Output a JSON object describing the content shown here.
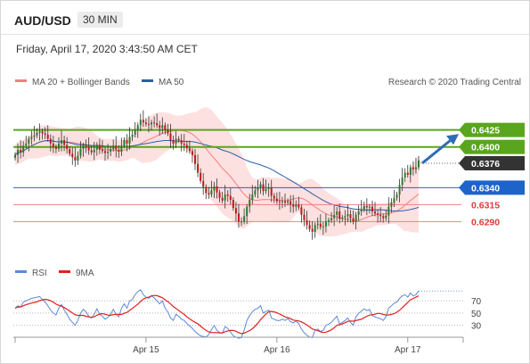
{
  "header": {
    "symbol": "AUD/USD",
    "timeframe": "30 MIN",
    "datetime": "Friday, April 17, 2020 3:43:50 AM CET"
  },
  "legend": {
    "ma20_label": "MA 20 + Bollinger Bands",
    "ma50_label": "MA 50",
    "credit": "Research © 2020 Trading Central",
    "rsi_label": "RSI",
    "ma9_label": "9MA"
  },
  "colors": {
    "ma20": "#f08080",
    "ma50": "#2b5ea8",
    "band_fill": "#fde0e0",
    "resistance": "#5aa51e",
    "support_blue": "#1e64c8",
    "support_red": "#e03c3c",
    "current": "#333333",
    "rsi": "#5b8ad6",
    "rsi_ma": "#e02020",
    "up_candle": "#2a7a2a",
    "down_candle": "#c01818"
  },
  "chart_data": [
    {
      "type": "candlestick",
      "x_tick_labels": [
        "Apr 15",
        "Apr 16",
        "Apr 17"
      ],
      "ylim": [
        0.6238,
        0.6485
      ],
      "current_price": 0.6376,
      "levels": [
        {
          "label": "0.6425",
          "value": 0.6425,
          "kind": "resistance"
        },
        {
          "label": "0.6400",
          "value": 0.64,
          "kind": "resistance"
        },
        {
          "label": "0.6376",
          "value": 0.6376,
          "kind": "current"
        },
        {
          "label": "0.6340",
          "value": 0.634,
          "kind": "support_blue"
        },
        {
          "label": "0.6315",
          "value": 0.6315,
          "kind": "support_red"
        },
        {
          "label": "0.6290",
          "value": 0.629,
          "kind": "support_red"
        }
      ],
      "forecast_arrow": {
        "from": 0.6376,
        "to": 0.6419
      },
      "close": [
        0.6388,
        0.6396,
        0.6392,
        0.6402,
        0.6405,
        0.6412,
        0.6415,
        0.6417,
        0.6421,
        0.6423,
        0.642,
        0.6418,
        0.6412,
        0.6405,
        0.64,
        0.6397,
        0.6405,
        0.641,
        0.6403,
        0.6397,
        0.639,
        0.6385,
        0.638,
        0.6387,
        0.6397,
        0.6402,
        0.64,
        0.6395,
        0.6392,
        0.6396,
        0.6403,
        0.6396,
        0.6394,
        0.6391,
        0.6393,
        0.6397,
        0.6402,
        0.6396,
        0.6393,
        0.6402,
        0.641,
        0.6405,
        0.6415,
        0.6418,
        0.6425,
        0.6432,
        0.644,
        0.6436,
        0.6434,
        0.6433,
        0.6436,
        0.6435,
        0.6432,
        0.6428,
        0.6432,
        0.6425,
        0.642,
        0.641,
        0.6405,
        0.6412,
        0.641,
        0.6405,
        0.6403,
        0.6398,
        0.6394,
        0.6388,
        0.6375,
        0.6362,
        0.635,
        0.6341,
        0.6332,
        0.633,
        0.6336,
        0.6342,
        0.6333,
        0.6325,
        0.6321,
        0.633,
        0.6328,
        0.6322,
        0.631,
        0.6302,
        0.629,
        0.629,
        0.6298,
        0.6312,
        0.6322,
        0.633,
        0.6336,
        0.634,
        0.6345,
        0.6335,
        0.6338,
        0.634,
        0.6328,
        0.6324,
        0.632,
        0.6319,
        0.632,
        0.6318,
        0.632,
        0.6315,
        0.6312,
        0.6315,
        0.6311,
        0.63,
        0.6292,
        0.6285,
        0.6279,
        0.6275,
        0.6285,
        0.6287,
        0.6282,
        0.6283,
        0.629,
        0.6292,
        0.6295,
        0.63,
        0.6305,
        0.6294,
        0.6296,
        0.6298,
        0.6301,
        0.6295,
        0.629,
        0.63,
        0.6305,
        0.6308,
        0.6313,
        0.6311,
        0.6312,
        0.6305,
        0.6302,
        0.63,
        0.6298,
        0.6295,
        0.6299,
        0.6312,
        0.6318,
        0.6325,
        0.633,
        0.6344,
        0.6355,
        0.6362,
        0.6359,
        0.637,
        0.6367,
        0.637,
        0.638
      ]
    },
    {
      "type": "line",
      "name": "RSI",
      "y_tick_labels": [
        "70",
        "50",
        "30"
      ],
      "ylim": [
        15,
        95
      ],
      "rsi": [
        58,
        62,
        60,
        68,
        70,
        72,
        74,
        75,
        76,
        77,
        72,
        68,
        62,
        55,
        50,
        47,
        58,
        64,
        55,
        48,
        40,
        35,
        30,
        38,
        50,
        56,
        52,
        45,
        42,
        48,
        57,
        48,
        45,
        40,
        43,
        48,
        56,
        48,
        44,
        58,
        65,
        58,
        70,
        72,
        80,
        85,
        88,
        80,
        76,
        74,
        78,
        75,
        70,
        65,
        70,
        58,
        52,
        42,
        38,
        48,
        45,
        40,
        38,
        33,
        29,
        25,
        20,
        16,
        13,
        12,
        11,
        15,
        23,
        30,
        22,
        18,
        17,
        28,
        25,
        19,
        13,
        11,
        9,
        10,
        22,
        38,
        46,
        52,
        56,
        58,
        62,
        50,
        53,
        55,
        42,
        40,
        38,
        38,
        40,
        38,
        41,
        36,
        34,
        37,
        33,
        24,
        18,
        14,
        11,
        10,
        22,
        24,
        20,
        22,
        30,
        32,
        35,
        40,
        45,
        32,
        35,
        38,
        42,
        35,
        30,
        44,
        50,
        53,
        57,
        54,
        56,
        46,
        44,
        42,
        41,
        38,
        44,
        58,
        62,
        66,
        68,
        74,
        78,
        80,
        76,
        83,
        78,
        80,
        86
      ]
    }
  ]
}
